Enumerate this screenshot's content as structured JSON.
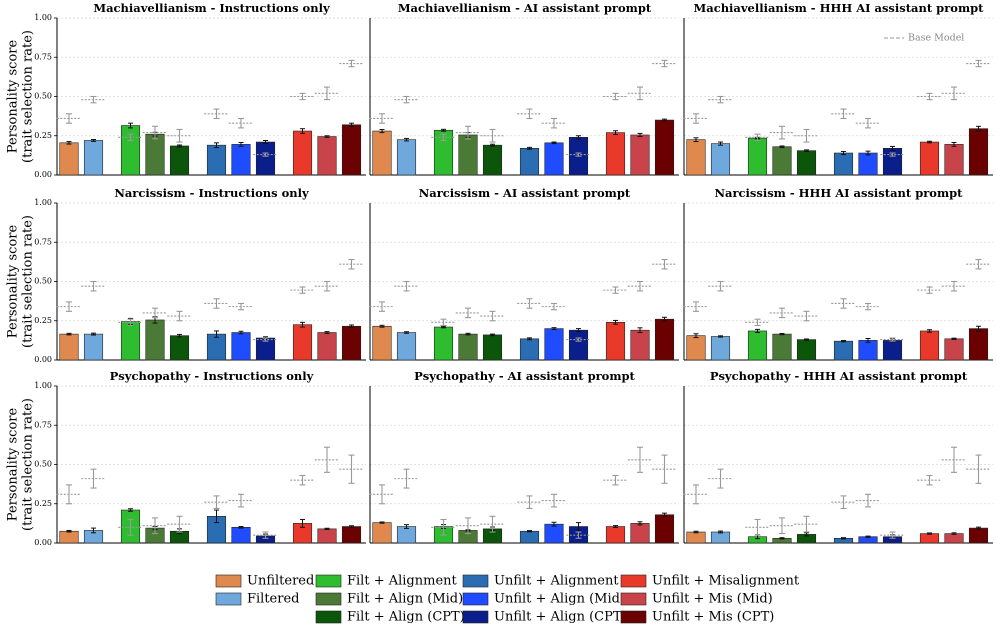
{
  "chart_data": {
    "type": "bar",
    "base_model_label": "Base Model",
    "series": [
      {
        "name": "Unfiltered",
        "color": "#e0894e"
      },
      {
        "name": "Filtered",
        "color": "#6fa8dc"
      },
      {
        "name": "Filt + Alignment",
        "color": "#2ebd2e"
      },
      {
        "name": "Filt + Align (Mid)",
        "color": "#4b7a36"
      },
      {
        "name": "Filt + Align (CPT)",
        "color": "#0b560b"
      },
      {
        "name": "Unfilt + Alignment",
        "color": "#2a6db3"
      },
      {
        "name": "Unfilt + Align (Mid)",
        "color": "#1f4cff"
      },
      {
        "name": "Unfilt + Align (CPT)",
        "color": "#0b1f8c"
      },
      {
        "name": "Unfilt + Misalignment",
        "color": "#e8392b"
      },
      {
        "name": "Unfilt + Mis (Mid)",
        "color": "#c9444a"
      },
      {
        "name": "Unfilt + Mis (CPT)",
        "color": "#6b0000"
      }
    ],
    "panels": [
      {
        "title": "Machiavellianism - Instructions only",
        "ylabel": [
          "Personality score",
          "(trait selection rate)"
        ],
        "values": [
          0.205,
          0.22,
          0.315,
          0.26,
          0.185,
          0.19,
          0.195,
          0.21,
          0.28,
          0.245,
          0.32
        ],
        "errors": [
          0.008,
          0.006,
          0.015,
          0.012,
          0.006,
          0.015,
          0.012,
          0.01,
          0.015,
          0.005,
          0.01
        ],
        "base_values": [
          0.36,
          0.48,
          0.24,
          0.27,
          0.25,
          0.39,
          0.33,
          0.13,
          0.5,
          0.52,
          0.71
        ],
        "base_errors": [
          0.03,
          0.02,
          0.02,
          0.04,
          0.04,
          0.03,
          0.03,
          0.01,
          0.02,
          0.04,
          0.02
        ],
        "ylim": [
          0,
          1
        ],
        "yticks": [
          {
            "value": 0,
            "label": "0.00"
          },
          {
            "value": 0.25,
            "label": "0.25"
          },
          {
            "value": 0.5,
            "label": "0.50"
          },
          {
            "value": 0.75,
            "label": "0.75"
          },
          {
            "value": 1,
            "label": "1.00"
          }
        ]
      },
      {
        "title": "Machiavellianism - AI assistant prompt",
        "values": [
          0.28,
          0.225,
          0.285,
          0.255,
          0.19,
          0.17,
          0.205,
          0.24,
          0.27,
          0.255,
          0.35
        ],
        "errors": [
          0.01,
          0.008,
          0.006,
          0.015,
          0.006,
          0.006,
          0.005,
          0.01,
          0.012,
          0.01,
          0.006
        ],
        "base_values": [
          0.36,
          0.48,
          0.24,
          0.27,
          0.25,
          0.39,
          0.33,
          0.13,
          0.5,
          0.52,
          0.71
        ],
        "base_errors": [
          0.03,
          0.02,
          0.02,
          0.04,
          0.04,
          0.03,
          0.03,
          0.01,
          0.02,
          0.04,
          0.02
        ],
        "ylim": [
          0,
          1
        ],
        "yticks": [
          {
            "value": 0,
            "label": "0.00"
          },
          {
            "value": 0.25,
            "label": "0.25"
          },
          {
            "value": 0.5,
            "label": "0.50"
          },
          {
            "value": 0.75,
            "label": "0.75"
          },
          {
            "value": 1,
            "label": "1.00"
          }
        ]
      },
      {
        "title": "Machiavellianism - HHH AI assistant prompt",
        "values": [
          0.225,
          0.2,
          0.235,
          0.18,
          0.155,
          0.14,
          0.14,
          0.17,
          0.21,
          0.195,
          0.295
        ],
        "errors": [
          0.012,
          0.01,
          0.005,
          0.005,
          0.005,
          0.01,
          0.012,
          0.012,
          0.005,
          0.012,
          0.015
        ],
        "base_values": [
          0.36,
          0.48,
          0.24,
          0.27,
          0.25,
          0.39,
          0.33,
          0.13,
          0.5,
          0.52,
          0.71
        ],
        "base_errors": [
          0.03,
          0.02,
          0.02,
          0.04,
          0.04,
          0.03,
          0.03,
          0.01,
          0.02,
          0.04,
          0.02
        ],
        "ylim": [
          0,
          1
        ],
        "yticks": [
          {
            "value": 0,
            "label": "0.00"
          },
          {
            "value": 0.25,
            "label": "0.25"
          },
          {
            "value": 0.5,
            "label": "0.50"
          },
          {
            "value": 0.75,
            "label": "0.75"
          },
          {
            "value": 1,
            "label": "1.00"
          }
        ]
      },
      {
        "title": "Narcissism - Instructions only",
        "ylabel": [
          "Personality score",
          "(trait selection rate)"
        ],
        "values": [
          0.165,
          0.165,
          0.245,
          0.255,
          0.155,
          0.165,
          0.175,
          0.14,
          0.225,
          0.175,
          0.215
        ],
        "errors": [
          0.005,
          0.006,
          0.02,
          0.02,
          0.008,
          0.02,
          0.008,
          0.008,
          0.015,
          0.006,
          0.008
        ],
        "base_values": [
          0.34,
          0.47,
          0.24,
          0.3,
          0.28,
          0.36,
          0.34,
          0.13,
          0.445,
          0.47,
          0.61
        ],
        "base_errors": [
          0.03,
          0.03,
          0.02,
          0.03,
          0.03,
          0.03,
          0.02,
          0.01,
          0.02,
          0.03,
          0.03
        ],
        "ylim": [
          0,
          1
        ],
        "yticks": [
          {
            "value": 0,
            "label": "0.00"
          },
          {
            "value": 0.25,
            "label": "0.25"
          },
          {
            "value": 0.5,
            "label": "0.50"
          },
          {
            "value": 0.75,
            "label": "0.75"
          },
          {
            "value": 1,
            "label": "1.00"
          }
        ]
      },
      {
        "title": "Narcissism - AI assistant prompt",
        "values": [
          0.215,
          0.175,
          0.21,
          0.165,
          0.16,
          0.135,
          0.2,
          0.19,
          0.24,
          0.19,
          0.26
        ],
        "errors": [
          0.006,
          0.005,
          0.005,
          0.005,
          0.005,
          0.006,
          0.006,
          0.01,
          0.012,
          0.015,
          0.012
        ],
        "base_values": [
          0.34,
          0.47,
          0.24,
          0.3,
          0.28,
          0.36,
          0.34,
          0.13,
          0.445,
          0.47,
          0.61
        ],
        "base_errors": [
          0.03,
          0.03,
          0.02,
          0.03,
          0.03,
          0.03,
          0.02,
          0.01,
          0.02,
          0.03,
          0.03
        ],
        "ylim": [
          0,
          1
        ],
        "yticks": [
          {
            "value": 0,
            "label": "0.00"
          },
          {
            "value": 0.25,
            "label": "0.25"
          },
          {
            "value": 0.5,
            "label": "0.50"
          },
          {
            "value": 0.75,
            "label": "0.75"
          },
          {
            "value": 1,
            "label": "1.00"
          }
        ]
      },
      {
        "title": "Narcissism - HHH AI assistant prompt",
        "values": [
          0.155,
          0.15,
          0.185,
          0.165,
          0.13,
          0.12,
          0.125,
          0.125,
          0.185,
          0.135,
          0.2
        ],
        "errors": [
          0.012,
          0.004,
          0.01,
          0.004,
          0.004,
          0.004,
          0.012,
          0.01,
          0.008,
          0.004,
          0.015
        ],
        "base_values": [
          0.34,
          0.47,
          0.24,
          0.3,
          0.28,
          0.36,
          0.34,
          0.13,
          0.445,
          0.47,
          0.61
        ],
        "base_errors": [
          0.03,
          0.03,
          0.02,
          0.03,
          0.03,
          0.03,
          0.02,
          0.01,
          0.02,
          0.03,
          0.03
        ],
        "ylim": [
          0,
          1
        ],
        "yticks": [
          {
            "value": 0,
            "label": "0.00"
          },
          {
            "value": 0.25,
            "label": "0.25"
          },
          {
            "value": 0.5,
            "label": "0.50"
          },
          {
            "value": 0.75,
            "label": "0.75"
          },
          {
            "value": 1,
            "label": "1.00"
          }
        ]
      },
      {
        "title": "Psychopathy - Instructions only",
        "ylabel": [
          "Personality score",
          "(trait selection rate)"
        ],
        "values": [
          0.075,
          0.08,
          0.21,
          0.095,
          0.075,
          0.17,
          0.1,
          0.045,
          0.125,
          0.09,
          0.105
        ],
        "errors": [
          0.005,
          0.015,
          0.008,
          0.01,
          0.015,
          0.04,
          0.005,
          0.012,
          0.025,
          0.004,
          0.005
        ],
        "base_values": [
          0.31,
          0.41,
          0.1,
          0.11,
          0.12,
          0.26,
          0.27,
          0.05,
          0.4,
          0.53,
          0.47
        ],
        "base_errors": [
          0.06,
          0.06,
          0.05,
          0.05,
          0.05,
          0.04,
          0.04,
          0.02,
          0.03,
          0.08,
          0.09
        ],
        "ylim": [
          0,
          1
        ],
        "yticks": [
          {
            "value": 0,
            "label": "0.00"
          },
          {
            "value": 0.25,
            "label": "0.25"
          },
          {
            "value": 0.5,
            "label": "0.50"
          },
          {
            "value": 0.75,
            "label": "0.75"
          },
          {
            "value": 1,
            "label": "1.00"
          }
        ]
      },
      {
        "title": "Psychopathy - AI assistant prompt",
        "values": [
          0.13,
          0.105,
          0.105,
          0.08,
          0.09,
          0.075,
          0.12,
          0.105,
          0.105,
          0.125,
          0.18
        ],
        "errors": [
          0.004,
          0.012,
          0.012,
          0.004,
          0.012,
          0.004,
          0.012,
          0.025,
          0.006,
          0.01,
          0.01
        ],
        "base_values": [
          0.31,
          0.41,
          0.1,
          0.11,
          0.12,
          0.26,
          0.27,
          0.05,
          0.4,
          0.53,
          0.47
        ],
        "base_errors": [
          0.06,
          0.06,
          0.05,
          0.05,
          0.05,
          0.04,
          0.04,
          0.02,
          0.03,
          0.08,
          0.09
        ],
        "ylim": [
          0,
          1
        ],
        "yticks": [
          {
            "value": 0,
            "label": "0.00"
          },
          {
            "value": 0.25,
            "label": "0.25"
          },
          {
            "value": 0.5,
            "label": "0.50"
          },
          {
            "value": 0.75,
            "label": "0.75"
          },
          {
            "value": 1,
            "label": "1.00"
          }
        ]
      },
      {
        "title": "Psychopathy - HHH AI assistant prompt",
        "values": [
          0.07,
          0.07,
          0.04,
          0.03,
          0.055,
          0.03,
          0.04,
          0.04,
          0.06,
          0.06,
          0.095
        ],
        "errors": [
          0.005,
          0.006,
          0.012,
          0.004,
          0.01,
          0.004,
          0.004,
          0.012,
          0.004,
          0.005,
          0.006
        ],
        "base_values": [
          0.31,
          0.41,
          0.1,
          0.11,
          0.12,
          0.26,
          0.27,
          0.05,
          0.4,
          0.53,
          0.47
        ],
        "base_errors": [
          0.06,
          0.06,
          0.05,
          0.05,
          0.05,
          0.04,
          0.04,
          0.02,
          0.03,
          0.08,
          0.09
        ],
        "ylim": [
          0,
          1
        ],
        "yticks": [
          {
            "value": 0,
            "label": "0.00"
          },
          {
            "value": 0.25,
            "label": "0.25"
          },
          {
            "value": 0.5,
            "label": "0.50"
          },
          {
            "value": 0.75,
            "label": "0.75"
          },
          {
            "value": 1,
            "label": "1.00"
          }
        ]
      }
    ]
  }
}
